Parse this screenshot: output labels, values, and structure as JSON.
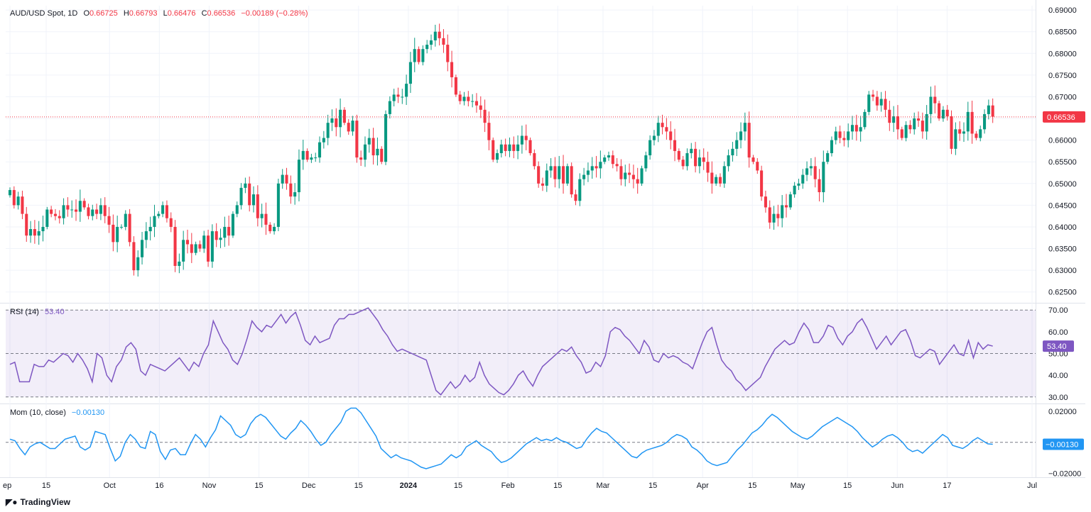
{
  "header": {
    "symbol": "AUD/USD Spot, 1D",
    "o_label": "O",
    "o_value": "0.66725",
    "h_label": "H",
    "h_value": "0.66793",
    "l_label": "L",
    "l_value": "0.66476",
    "c_label": "C",
    "c_value": "0.66536",
    "change": "−0.00189 (−0.28%)"
  },
  "rsi_header": {
    "label": "RSI (14)",
    "value": "53.40"
  },
  "mom_header": {
    "label": "Mom (10, close)",
    "value": "−0.00130"
  },
  "brand": {
    "logo": "◤●",
    "name": "TradingView"
  },
  "colors": {
    "up": "#089981",
    "down": "#f23645",
    "rsi": "#7e57c2",
    "mom": "#2196f3",
    "price_line": "#f23645",
    "grid": "#f0f3fa",
    "axis_text": "#131722"
  },
  "chart_data": [
    {
      "type": "candlestick",
      "title": "AUD/USD Spot, 1D",
      "ylim": [
        0.6225,
        0.691
      ],
      "y_ticks": [
        "0.69000",
        "0.68500",
        "0.68000",
        "0.67500",
        "0.67000",
        "0.66500",
        "0.66000",
        "0.65500",
        "0.65000",
        "0.64500",
        "0.64000",
        "0.63500",
        "0.63000",
        "0.62500"
      ],
      "x_ticks": [
        "ep",
        "15",
        "Oct",
        "16",
        "Nov",
        "15",
        "Dec",
        "15",
        "2024",
        "15",
        "Feb",
        "15",
        "Mar",
        "15",
        "Apr",
        "15",
        "May",
        "15",
        "Jun",
        "17",
        "Jul"
      ],
      "last_price": 0.66536,
      "last_price_label": "0.66536",
      "closes": [
        0.6485,
        0.645,
        0.647,
        0.643,
        0.638,
        0.6395,
        0.638,
        0.639,
        0.64,
        0.644,
        0.643,
        0.6425,
        0.642,
        0.645,
        0.644,
        0.644,
        0.6435,
        0.646,
        0.6445,
        0.6425,
        0.644,
        0.643,
        0.645,
        0.6425,
        0.6405,
        0.6365,
        0.64,
        0.64,
        0.643,
        0.6365,
        0.63,
        0.633,
        0.637,
        0.639,
        0.64,
        0.6425,
        0.643,
        0.645,
        0.642,
        0.64,
        0.631,
        0.632,
        0.637,
        0.636,
        0.634,
        0.636,
        0.635,
        0.638,
        0.632,
        0.639,
        0.637,
        0.6375,
        0.64,
        0.638,
        0.643,
        0.645,
        0.649,
        0.65,
        0.645,
        0.6475,
        0.642,
        0.643,
        0.6405,
        0.639,
        0.64,
        0.65,
        0.652,
        0.65,
        0.647,
        0.648,
        0.6555,
        0.6575,
        0.6555,
        0.656,
        0.656,
        0.6595,
        0.6605,
        0.664,
        0.665,
        0.663,
        0.667,
        0.664,
        0.662,
        0.6645,
        0.656,
        0.6555,
        0.659,
        0.6605,
        0.6565,
        0.658,
        0.655,
        0.666,
        0.669,
        0.6705,
        0.67,
        0.67,
        0.673,
        0.678,
        0.681,
        0.678,
        0.681,
        0.682,
        0.683,
        0.685,
        0.6835,
        0.682,
        0.678,
        0.6745,
        0.6705,
        0.669,
        0.67,
        0.669,
        0.669,
        0.668,
        0.667,
        0.664,
        0.66,
        0.6555,
        0.657,
        0.659,
        0.6575,
        0.659,
        0.6575,
        0.659,
        0.661,
        0.66,
        0.657,
        0.654,
        0.65,
        0.6495,
        0.653,
        0.654,
        0.651,
        0.654,
        0.65,
        0.654,
        0.6475,
        0.646,
        0.651,
        0.652,
        0.653,
        0.654,
        0.6535,
        0.655,
        0.656,
        0.6565,
        0.6545,
        0.654,
        0.651,
        0.6525,
        0.652,
        0.651,
        0.65,
        0.6535,
        0.6565,
        0.66,
        0.661,
        0.664,
        0.663,
        0.662,
        0.66,
        0.6575,
        0.6555,
        0.654,
        0.657,
        0.658,
        0.654,
        0.656,
        0.655,
        0.6525,
        0.65,
        0.6515,
        0.65,
        0.654,
        0.6565,
        0.658,
        0.66,
        0.662,
        0.664,
        0.656,
        0.655,
        0.653,
        0.647,
        0.6445,
        0.641,
        0.643,
        0.642,
        0.645,
        0.6445,
        0.6475,
        0.6495,
        0.65,
        0.652,
        0.6535,
        0.654,
        0.651,
        0.648,
        0.655,
        0.657,
        0.66,
        0.662,
        0.6605,
        0.66,
        0.662,
        0.6635,
        0.662,
        0.663,
        0.6665,
        0.6705,
        0.67,
        0.668,
        0.6695,
        0.667,
        0.664,
        0.6655,
        0.6625,
        0.6605,
        0.6635,
        0.6625,
        0.665,
        0.6645,
        0.662,
        0.666,
        0.67,
        0.6685,
        0.665,
        0.667,
        0.6655,
        0.658,
        0.6625,
        0.6615,
        0.662,
        0.6665,
        0.6615,
        0.6605,
        0.6625,
        0.666,
        0.668,
        0.6654
      ],
      "rsi": {
        "label": "RSI (14)",
        "value": 53.4,
        "ylim": [
          27,
          73
        ],
        "y_ticks": [
          "70.00",
          "60.00",
          "50.00",
          "40.00",
          "30.00"
        ],
        "bands": [
          70,
          30
        ],
        "middle": 50,
        "values": [
          45,
          46,
          37,
          37,
          37,
          45,
          44,
          44,
          47,
          46,
          48,
          50,
          49,
          46,
          50,
          47,
          43,
          37,
          50,
          48,
          40,
          37,
          44,
          47,
          53,
          55,
          52,
          42,
          40,
          45,
          44,
          43,
          42,
          44,
          46,
          48,
          45,
          42,
          46,
          44,
          50,
          54,
          65,
          60,
          55,
          52,
          47,
          45,
          50,
          57,
          65,
          62,
          60,
          63,
          62,
          65,
          68,
          64,
          67,
          69,
          63,
          56,
          54,
          58,
          55,
          56,
          57,
          63,
          66,
          66,
          68,
          68,
          69,
          70,
          71,
          68,
          65,
          61,
          58,
          54,
          51,
          52,
          51,
          50,
          49,
          48,
          47,
          40,
          33,
          31,
          34,
          37,
          34,
          36,
          40,
          37,
          39,
          46,
          40,
          36,
          34,
          32,
          31,
          33,
          36,
          40,
          42,
          38,
          35,
          40,
          44,
          46,
          48,
          50,
          52,
          51,
          53,
          49,
          46,
          41,
          42,
          46,
          44,
          49,
          60,
          62,
          61,
          58,
          56,
          53,
          50,
          56,
          53,
          47,
          46,
          50,
          48,
          49,
          48,
          46,
          45,
          43,
          49,
          55,
          60,
          62,
          54,
          47,
          44,
          42,
          38,
          36,
          33,
          35,
          37,
          39,
          44,
          48,
          52,
          54,
          56,
          54,
          55,
          60,
          64,
          61,
          55,
          55,
          58,
          63,
          62,
          57,
          54,
          58,
          60,
          64,
          66,
          62,
          57,
          52,
          55,
          58,
          54,
          57,
          60,
          61,
          56,
          49,
          48,
          50,
          52,
          51,
          45,
          48,
          51,
          54,
          50,
          49,
          56,
          48,
          55,
          52,
          54,
          53.4
        ]
      },
      "momentum": {
        "label": "Mom (10, close)",
        "value": -0.0013,
        "value_label": "−0.00130",
        "ylim": [
          -0.0225,
          0.0245
        ],
        "y_ticks": [
          "0.02000",
          "-0.02000"
        ],
        "zero_line": 0,
        "values": [
          0.002,
          0.001,
          -0.004,
          -0.008,
          -0.003,
          -0.001,
          0.0,
          -0.002,
          -0.004,
          -0.004,
          -0.001,
          0.002,
          0.003,
          0.004,
          -0.003,
          -0.005,
          -0.003,
          0.007,
          0.006,
          0.005,
          -0.004,
          -0.012,
          -0.009,
          0.0,
          0.005,
          0.002,
          -0.003,
          -0.004,
          0.007,
          0.005,
          -0.006,
          -0.011,
          -0.005,
          -0.004,
          -0.008,
          -0.008,
          -0.001,
          0.005,
          0.002,
          -0.003,
          0.003,
          0.008,
          0.017,
          0.014,
          0.011,
          0.005,
          0.003,
          0.005,
          0.012,
          0.016,
          0.018,
          0.016,
          0.012,
          0.008,
          0.004,
          0.002,
          0.006,
          0.009,
          0.014,
          0.011,
          0.007,
          0.002,
          -0.002,
          0.0,
          0.005,
          0.009,
          0.013,
          0.02,
          0.022,
          0.022,
          0.019,
          0.014,
          0.009,
          0.004,
          -0.004,
          -0.007,
          -0.01,
          -0.008,
          -0.01,
          -0.011,
          -0.012,
          -0.014,
          -0.016,
          -0.017,
          -0.016,
          -0.015,
          -0.014,
          -0.011,
          -0.008,
          -0.01,
          -0.008,
          -0.003,
          -0.001,
          0.001,
          -0.002,
          -0.004,
          -0.006,
          -0.01,
          -0.013,
          -0.012,
          -0.01,
          -0.007,
          -0.004,
          -0.001,
          0.001,
          0.003,
          0.001,
          0.002,
          0.001,
          0.003,
          0.001,
          0.0,
          -0.002,
          -0.004,
          -0.003,
          0.002,
          0.006,
          0.009,
          0.007,
          0.006,
          0.003,
          0.0,
          -0.003,
          -0.006,
          -0.009,
          -0.01,
          -0.007,
          -0.005,
          -0.004,
          -0.003,
          -0.002,
          0.0,
          0.003,
          0.005,
          0.004,
          0.002,
          -0.003,
          -0.005,
          -0.008,
          -0.012,
          -0.014,
          -0.015,
          -0.014,
          -0.013,
          -0.009,
          -0.005,
          -0.002,
          0.002,
          0.006,
          0.008,
          0.011,
          0.015,
          0.018,
          0.016,
          0.013,
          0.01,
          0.007,
          0.005,
          0.003,
          0.002,
          0.004,
          0.007,
          0.01,
          0.012,
          0.014,
          0.016,
          0.014,
          0.012,
          0.01,
          0.007,
          0.003,
          0.0,
          -0.003,
          -0.001,
          0.002,
          0.004,
          0.005,
          0.003,
          0.0,
          -0.004,
          -0.006,
          -0.005,
          -0.007,
          -0.004,
          -0.001,
          0.002,
          0.005,
          0.003,
          -0.002,
          -0.003,
          -0.004,
          -0.002,
          0.001,
          0.003,
          0.001,
          -0.001,
          -0.0013
        ]
      }
    }
  ]
}
